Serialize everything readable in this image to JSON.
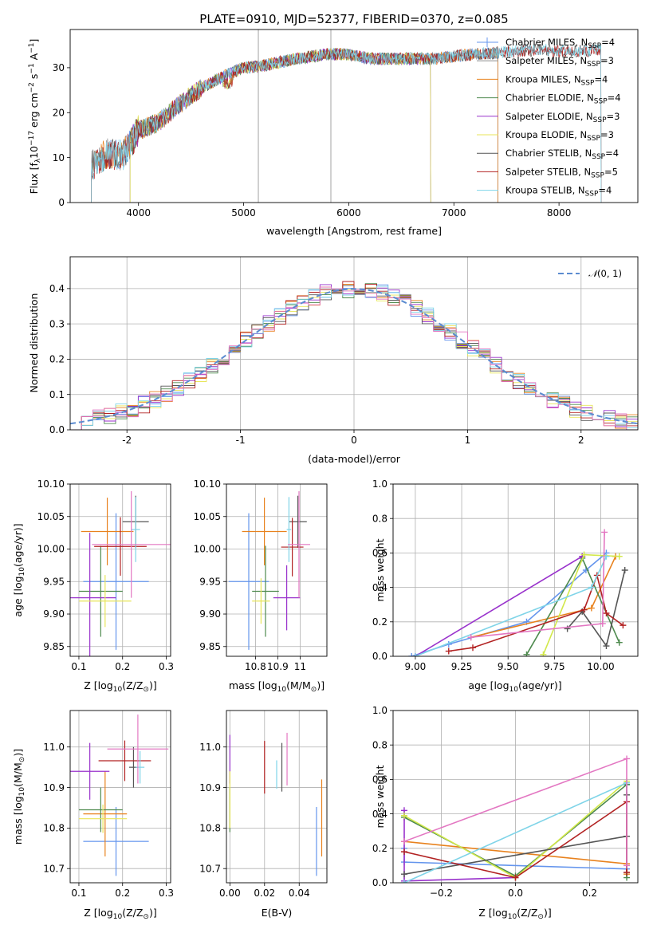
{
  "figure_title": "PLATE=0910, MJD=52377, FIBERID=0370, z=0.085",
  "colors": [
    "#6495ED",
    "#8B8B8B",
    "#E8821E",
    "#4E8A4E",
    "#9932CC",
    "#E8E55A",
    "#555555",
    "#B22222",
    "#7FD4E8",
    "#E377C2",
    "#A8A8A8",
    "#D2E84A"
  ],
  "chart_data": [
    {
      "id": "spectrum",
      "type": "line",
      "title": "PLATE=0910, MJD=52377, FIBERID=0370, z=0.085",
      "xlabel": "wavelength [Angstrom, rest frame]",
      "ylabel_parts": [
        "Flux [f",
        "λ",
        "10",
        "−17",
        " erg cm",
        "−2",
        " s",
        "−1",
        " A",
        "−1",
        "]"
      ],
      "xlim": [
        3350,
        8750
      ],
      "ylim": [
        0,
        38.5
      ],
      "xticks": [
        4000,
        5000,
        6000,
        7000,
        8000
      ],
      "yticks": [
        0,
        10,
        20,
        30
      ],
      "continuum": [
        [
          3550,
          8
        ],
        [
          3700,
          11
        ],
        [
          3850,
          10.5
        ],
        [
          4000,
          16
        ],
        [
          4200,
          18
        ],
        [
          4400,
          22
        ],
        [
          4600,
          25.5
        ],
        [
          4800,
          28
        ],
        [
          5000,
          30
        ],
        [
          5200,
          30.5
        ],
        [
          5500,
          32
        ],
        [
          5800,
          33
        ],
        [
          6000,
          33
        ],
        [
          6200,
          32
        ],
        [
          6500,
          32
        ],
        [
          6800,
          32
        ],
        [
          7000,
          32.5
        ],
        [
          7200,
          33
        ],
        [
          7500,
          33.5
        ],
        [
          7800,
          34
        ],
        [
          8100,
          33.5
        ],
        [
          8400,
          34
        ]
      ],
      "series": [
        {
          "name_parts": [
            "Chabrier MILES, N",
            "SSP",
            "=4"
          ],
          "color": "#6495ED",
          "start": 3550,
          "end": 7420
        },
        {
          "name_parts": [
            "Salpeter MILES, N",
            "SSP",
            "=3"
          ],
          "color": "#8B8B8B",
          "start": 3550,
          "end": 7420
        },
        {
          "name_parts": [
            "Kroupa MILES, N",
            "SSP",
            "=4"
          ],
          "color": "#E8821E",
          "start": 3550,
          "end": 7420
        },
        {
          "name_parts": [
            "Chabrier ELODIE, N",
            "SSP",
            "=4"
          ],
          "color": "#4E8A4E",
          "start": 3920,
          "end": 6780
        },
        {
          "name_parts": [
            "Salpeter ELODIE, N",
            "SSP",
            "=3"
          ],
          "color": "#9932CC",
          "start": 3920,
          "end": 6780
        },
        {
          "name_parts": [
            "Kroupa ELODIE, N",
            "SSP",
            "=3"
          ],
          "color": "#E8E55A",
          "start": 3920,
          "end": 6780
        },
        {
          "name_parts": [
            "Chabrier STELIB, N",
            "SSP",
            "=4"
          ],
          "color": "#555555",
          "start": 3550,
          "end": 8400
        },
        {
          "name_parts": [
            "Salpeter STELIB, N",
            "SSP",
            "=5"
          ],
          "color": "#B22222",
          "start": 3550,
          "end": 8400
        },
        {
          "name_parts": [
            "Kroupa STELIB, N",
            "SSP",
            "=4"
          ],
          "color": "#7FD4E8",
          "start": 3550,
          "end": 8400
        }
      ]
    },
    {
      "id": "residuals",
      "type": "line",
      "xlabel": "(data-model)/error",
      "ylabel": "Normed distribution",
      "xlim": [
        -2.5,
        2.5
      ],
      "ylim": [
        0,
        0.49
      ],
      "xticks": [
        -2,
        -1,
        0,
        1,
        2
      ],
      "yticks": [
        0.0,
        0.1,
        0.2,
        0.3,
        0.4
      ],
      "legend": "N(0,1)",
      "legend_parts": [
        "𝒩",
        "(0, 1)"
      ],
      "bin_width": 0.1,
      "hist_colors": [
        "#6495ED",
        "#E8821E",
        "#4E8A4E",
        "#9932CC",
        "#E8E55A",
        "#555555",
        "#B22222",
        "#7FD4E8",
        "#E377C2"
      ]
    },
    {
      "id": "age_vs_Z",
      "type": "scatter",
      "xlabel_parts": [
        "Z [log",
        "10",
        "(Z/Z",
        "⊙",
        ")]"
      ],
      "ylabel_parts": [
        "age  [log",
        "10",
        "(age/yr)]"
      ],
      "xlim": [
        0.08,
        0.31
      ],
      "ylim": [
        9.835,
        10.1
      ],
      "xticks": [
        0.1,
        0.2,
        0.3
      ],
      "yticks": [
        9.85,
        9.9,
        9.95,
        10.0,
        10.05,
        10.1
      ],
      "points": [
        {
          "x": 0.185,
          "y": 9.95,
          "xerr": 0.075,
          "yerr": 0.105,
          "color": "#6495ED"
        },
        {
          "x": 0.165,
          "y": 10.027,
          "xerr": 0.06,
          "yerr": 0.052,
          "color": "#E8821E"
        },
        {
          "x": 0.15,
          "y": 9.935,
          "xerr": 0.05,
          "yerr": 0.07,
          "color": "#4E8A4E"
        },
        {
          "x": 0.125,
          "y": 9.925,
          "xerr": 0.06,
          "yerr": 0.1,
          "color": "#9932CC"
        },
        {
          "x": 0.16,
          "y": 9.92,
          "xerr": 0.06,
          "yerr": 0.04,
          "color": "#E8E55A"
        },
        {
          "x": 0.23,
          "y": 10.042,
          "xerr": 0.03,
          "yerr": 0.04,
          "color": "#555555"
        },
        {
          "x": 0.195,
          "y": 10.004,
          "xerr": 0.06,
          "yerr": 0.045,
          "color": "#B22222"
        },
        {
          "x": 0.23,
          "y": 10.03,
          "xerr": 0.01,
          "yerr": 0.05,
          "color": "#7FD4E8"
        },
        {
          "x": 0.22,
          "y": 10.007,
          "xerr": 0.09,
          "yerr": 0.082,
          "color": "#E377C2"
        }
      ]
    },
    {
      "id": "age_vs_mass",
      "type": "scatter",
      "xlabel_parts": [
        "mass [log",
        "10",
        "(M/M",
        "⊙",
        ")]"
      ],
      "xlim": [
        10.67,
        11.12
      ],
      "ylim": [
        9.835,
        10.1
      ],
      "xticks": [
        10.8,
        10.9,
        11.0
      ],
      "yticks": [
        9.85,
        9.9,
        9.95,
        10.0,
        10.05,
        10.1
      ],
      "points": [
        {
          "x": 10.77,
          "y": 9.95,
          "xerr": 0.09,
          "yerr": 0.105,
          "color": "#6495ED"
        },
        {
          "x": 10.84,
          "y": 10.027,
          "xerr": 0.1,
          "yerr": 0.052,
          "color": "#E8821E"
        },
        {
          "x": 10.845,
          "y": 9.935,
          "xerr": 0.06,
          "yerr": 0.07,
          "color": "#4E8A4E"
        },
        {
          "x": 10.94,
          "y": 9.925,
          "xerr": 0.06,
          "yerr": 0.05,
          "color": "#9932CC"
        },
        {
          "x": 10.825,
          "y": 9.92,
          "xerr": 0.04,
          "yerr": 0.035,
          "color": "#E8E55A"
        },
        {
          "x": 10.99,
          "y": 10.042,
          "xerr": 0.04,
          "yerr": 0.04,
          "color": "#555555"
        },
        {
          "x": 10.965,
          "y": 10.003,
          "xerr": 0.05,
          "yerr": 0.045,
          "color": "#B22222"
        },
        {
          "x": 10.95,
          "y": 10.03,
          "xerr": 0.01,
          "yerr": 0.05,
          "color": "#7FD4E8"
        },
        {
          "x": 10.995,
          "y": 10.007,
          "xerr": 0.05,
          "yerr": 0.082,
          "color": "#E377C2"
        }
      ]
    },
    {
      "id": "weight_vs_age",
      "type": "line",
      "xlabel_parts": [
        "age  [log",
        "10",
        "(age/yr)]"
      ],
      "ylabel": "mass weight",
      "xlim": [
        8.88,
        10.2
      ],
      "ylim": [
        0,
        1.0
      ],
      "xticks": [
        9.0,
        9.25,
        9.5,
        9.75,
        10.0
      ],
      "xtick_labels": [
        "9.00",
        "9.25",
        "9.50",
        "9.75",
        "10.00"
      ],
      "yticks": [
        0.0,
        0.2,
        0.4,
        0.6,
        0.8,
        1.0
      ],
      "series": [
        {
          "color": "#6495ED",
          "x": [
            8.98,
            9.18,
            9.6,
            9.92,
            10.03
          ],
          "y": [
            0.0,
            0.07,
            0.2,
            0.5,
            0.6
          ]
        },
        {
          "color": "#E8821E",
          "x": [
            9.3,
            9.95,
            10.08
          ],
          "y": [
            0.11,
            0.28,
            0.58
          ]
        },
        {
          "color": "#4E8A4E",
          "x": [
            9.6,
            9.9,
            10.1
          ],
          "y": [
            0.01,
            0.57,
            0.08
          ]
        },
        {
          "color": "#9932CC",
          "x": [
            9.0,
            9.9
          ],
          "y": [
            0.0,
            0.58
          ]
        },
        {
          "color": "#D2E84A",
          "x": [
            9.69,
            9.91,
            10.1
          ],
          "y": [
            0.01,
            0.59,
            0.58
          ]
        },
        {
          "color": "#555555",
          "x": [
            9.82,
            9.9,
            10.03,
            10.13
          ],
          "y": [
            0.16,
            0.26,
            0.06,
            0.5
          ]
        },
        {
          "color": "#B22222",
          "x": [
            9.18,
            9.31,
            9.91,
            9.98,
            10.03,
            10.12
          ],
          "y": [
            0.03,
            0.05,
            0.27,
            0.47,
            0.25,
            0.18
          ]
        },
        {
          "color": "#7FD4E8",
          "x": [
            9.0,
            9.95,
            10.03
          ],
          "y": [
            0.0,
            0.4,
            0.58
          ]
        },
        {
          "color": "#E377C2",
          "x": [
            9.3,
            10.01,
            10.02
          ],
          "y": [
            0.11,
            0.19,
            0.72
          ]
        }
      ]
    },
    {
      "id": "mass_vs_Z",
      "type": "scatter",
      "xlabel_parts": [
        "Z [log",
        "10",
        "(Z/Z",
        "⊙",
        ")]"
      ],
      "ylabel_parts": [
        "mass [log",
        "10",
        "(M/M",
        "⊙",
        ")]"
      ],
      "xlim": [
        0.08,
        0.31
      ],
      "ylim": [
        10.665,
        11.09
      ],
      "xticks": [
        0.1,
        0.2,
        0.3
      ],
      "yticks": [
        10.7,
        10.8,
        10.9,
        11.0
      ],
      "points": [
        {
          "x": 0.185,
          "y": 10.767,
          "xerr": 0.075,
          "yerr": 0.085,
          "color": "#6495ED"
        },
        {
          "x": 0.16,
          "y": 10.835,
          "xerr": 0.05,
          "yerr": 0.105,
          "color": "#E8821E"
        },
        {
          "x": 0.15,
          "y": 10.845,
          "xerr": 0.05,
          "yerr": 0.055,
          "color": "#4E8A4E"
        },
        {
          "x": 0.125,
          "y": 10.94,
          "xerr": 0.045,
          "yerr": 0.07,
          "color": "#9932CC"
        },
        {
          "x": 0.155,
          "y": 10.823,
          "xerr": 0.055,
          "yerr": 0.035,
          "color": "#E8E55A"
        },
        {
          "x": 0.225,
          "y": 10.95,
          "xerr": 0.01,
          "yerr": 0.05,
          "color": "#555555"
        },
        {
          "x": 0.205,
          "y": 10.966,
          "xerr": 0.06,
          "yerr": 0.05,
          "color": "#B22222"
        },
        {
          "x": 0.24,
          "y": 10.95,
          "xerr": 0.01,
          "yerr": 0.04,
          "color": "#7FD4E8"
        },
        {
          "x": 0.235,
          "y": 10.995,
          "xerr": 0.07,
          "yerr": 0.085,
          "color": "#E377C2"
        }
      ]
    },
    {
      "id": "mass_vs_ebv",
      "type": "scatter",
      "xlabel": "E(B-V)",
      "xlim": [
        -0.002,
        0.056
      ],
      "ylim": [
        10.665,
        11.09
      ],
      "xticks": [
        0.0,
        0.02,
        0.04
      ],
      "xtick_labels": [
        "0.00",
        "0.02",
        "0.04"
      ],
      "yticks": [
        10.7,
        10.8,
        10.9,
        11.0
      ],
      "points": [
        {
          "x": 0.05,
          "y": 10.767,
          "yerr": 0.085,
          "color": "#6495ED"
        },
        {
          "x": 0.053,
          "y": 10.825,
          "yerr": 0.095,
          "color": "#E8821E"
        },
        {
          "x": 0.0,
          "y": 10.845,
          "yerr": 0.055,
          "color": "#4E8A4E"
        },
        {
          "x": 0.0,
          "y": 10.97,
          "yerr": 0.06,
          "color": "#9932CC"
        },
        {
          "x": 0.0,
          "y": 10.87,
          "yerr": 0.07,
          "color": "#E8E55A"
        },
        {
          "x": 0.03,
          "y": 10.95,
          "yerr": 0.06,
          "color": "#555555"
        },
        {
          "x": 0.02,
          "y": 10.95,
          "yerr": 0.065,
          "color": "#B22222"
        },
        {
          "x": 0.027,
          "y": 10.932,
          "yerr": 0.035,
          "color": "#7FD4E8"
        },
        {
          "x": 0.033,
          "y": 10.97,
          "yerr": 0.065,
          "color": "#E377C2"
        }
      ]
    },
    {
      "id": "weight_vs_Z",
      "type": "line",
      "xlabel_parts": [
        "Z [log",
        "10",
        "(Z/Z",
        "⊙",
        ")]"
      ],
      "ylabel": "mass weight",
      "xlim": [
        -0.33,
        0.33
      ],
      "ylim": [
        0,
        1.0
      ],
      "xticks": [
        -0.2,
        0.0,
        0.2
      ],
      "xtick_labels": [
        "−0.2",
        "0.0",
        "0.2"
      ],
      "yticks": [
        0.0,
        0.2,
        0.4,
        0.6,
        0.8,
        1.0
      ],
      "series": [
        {
          "color": "#6495ED",
          "x": [
            -0.3,
            -0.3,
            0.3,
            0.3
          ],
          "y": [
            0.2,
            0.12,
            0.08,
            0.57
          ]
        },
        {
          "color": "#E8821E",
          "x": [
            -0.3,
            0.3,
            0.3
          ],
          "y": [
            0.24,
            0.11,
            0.05
          ]
        },
        {
          "color": "#4E8A4E",
          "x": [
            -0.3,
            0.0,
            0.3,
            0.3
          ],
          "y": [
            0.38,
            0.04,
            0.57,
            0.03
          ]
        },
        {
          "color": "#9932CC",
          "x": [
            -0.3,
            -0.3,
            0.0
          ],
          "y": [
            0.42,
            0.01,
            0.03
          ]
        },
        {
          "color": "#D2E84A",
          "x": [
            -0.3,
            0.0,
            0.3,
            0.3
          ],
          "y": [
            0.39,
            0.03,
            0.59,
            0.58
          ]
        },
        {
          "color": "#555555",
          "x": [
            -0.3,
            0.3,
            0.3,
            0.3
          ],
          "y": [
            0.05,
            0.27,
            0.51,
            0.06
          ]
        },
        {
          "color": "#B22222",
          "x": [
            -0.3,
            0.0,
            0.3,
            0.3
          ],
          "y": [
            0.18,
            0.03,
            0.47,
            0.06
          ]
        },
        {
          "color": "#7FD4E8",
          "x": [
            -0.3,
            0.3,
            0.3
          ],
          "y": [
            0.0,
            0.58,
            0.58
          ]
        },
        {
          "color": "#E377C2",
          "x": [
            -0.3,
            0.3,
            0.3
          ],
          "y": [
            0.24,
            0.72,
            0.1
          ]
        }
      ]
    }
  ]
}
